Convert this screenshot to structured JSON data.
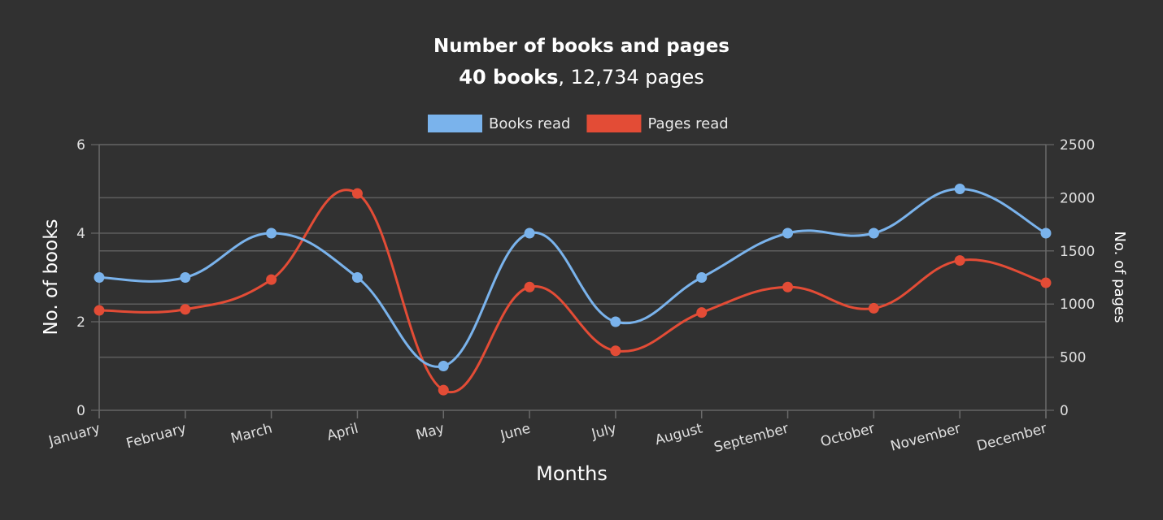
{
  "chart_data": {
    "type": "line",
    "title": "Number of books and pages",
    "subtitle_bold": "40 books",
    "subtitle_rest": ", 12,734 pages",
    "xlabel": "Months",
    "ylabel_left": "No. of books",
    "ylabel_right": "No. of pages",
    "categories": [
      "January",
      "February",
      "March",
      "April",
      "May",
      "June",
      "July",
      "August",
      "September",
      "October",
      "November",
      "December"
    ],
    "y_left": {
      "range": [
        0,
        6
      ],
      "ticks": [
        0,
        2,
        4,
        6
      ]
    },
    "y_right": {
      "range": [
        0,
        2500
      ],
      "ticks": [
        0,
        500,
        1000,
        1500,
        2000,
        2500
      ]
    },
    "grid": true,
    "legend_position": "top",
    "series": [
      {
        "name": "Books read",
        "axis": "left",
        "color": "#7ab3ec",
        "values": [
          3,
          3,
          4,
          3,
          1,
          4,
          2,
          3,
          4,
          4,
          5,
          4
        ]
      },
      {
        "name": "Pages read",
        "axis": "right",
        "color": "#e34c36",
        "values": [
          940,
          950,
          1230,
          2040,
          190,
          1160,
          560,
          920,
          1160,
          960,
          1410,
          1200
        ]
      }
    ]
  }
}
